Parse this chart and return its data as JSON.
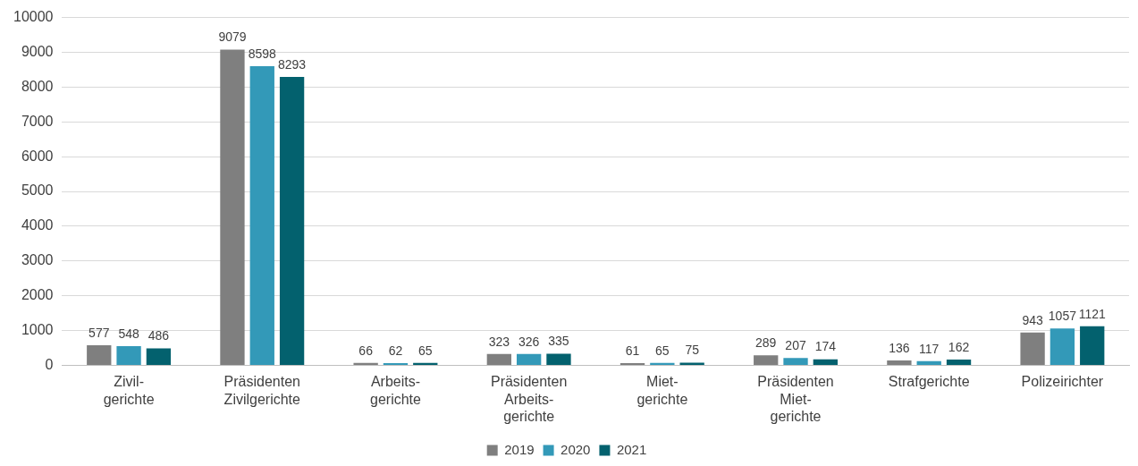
{
  "chart_data": {
    "type": "bar",
    "categories": [
      "Zivil-\ngerichte",
      "Präsidenten\nZivilgerichte",
      "Arbeits-\ngerichte",
      "Präsidenten\nArbeits-\ngerichte",
      "Miet-\ngerichte",
      "Präsidenten\nMiet-\ngerichte",
      "Strafgerichte",
      "Polizeirichter"
    ],
    "series": [
      {
        "name": "2019",
        "color": "#7f7f7f",
        "values": [
          577,
          9079,
          66,
          323,
          61,
          289,
          136,
          943
        ]
      },
      {
        "name": "2020",
        "color": "#3399b8",
        "values": [
          548,
          8598,
          62,
          326,
          65,
          207,
          117,
          1057
        ]
      },
      {
        "name": "2021",
        "color": "#03616e",
        "values": [
          486,
          8293,
          65,
          335,
          75,
          174,
          162,
          1121
        ]
      }
    ],
    "ylim": [
      0,
      10000
    ],
    "yticks": [
      0,
      1000,
      2000,
      3000,
      4000,
      5000,
      6000,
      7000,
      8000,
      9000,
      10000
    ],
    "grid": "y",
    "legend": "bottom",
    "data_labels": true
  }
}
